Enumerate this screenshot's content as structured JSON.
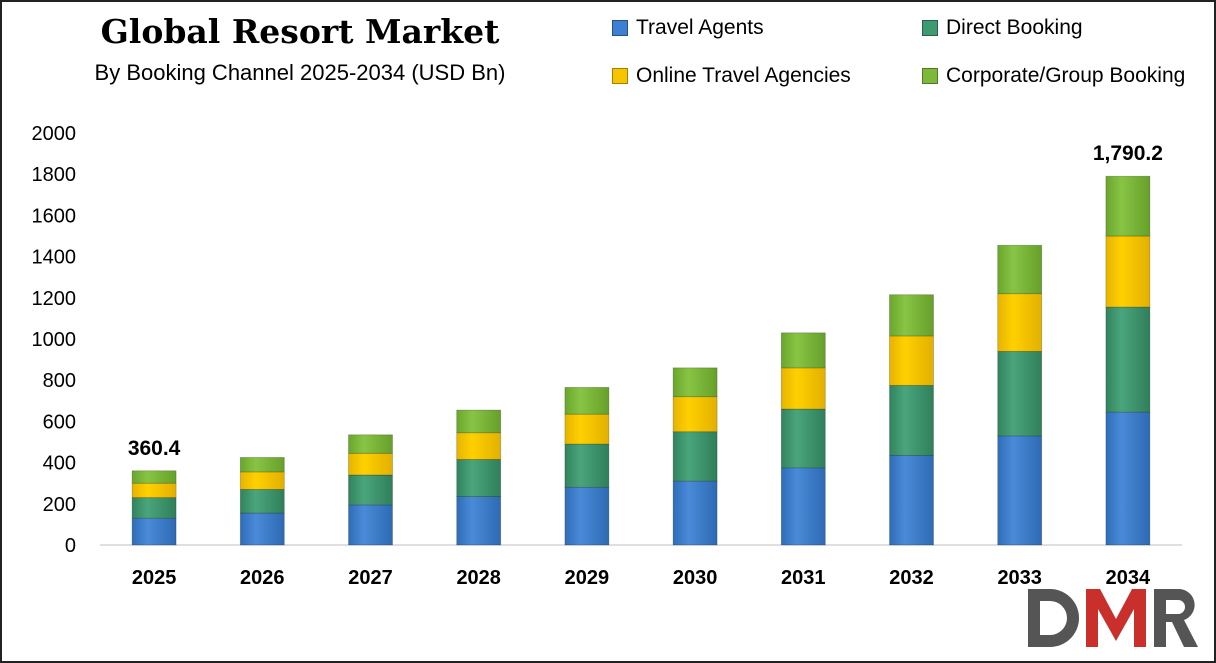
{
  "title": "Global Resort Market",
  "subtitle": "By Booking Channel 2025-2034 (USD Bn)",
  "logo_text": "DMR",
  "colors": {
    "travel_agents": "#3d7fd0",
    "direct_booking": "#3f9a72",
    "online_travel_agencies": "#f7c400",
    "corporate_group_booking": "#7db83a"
  },
  "chart_data": {
    "type": "bar",
    "stacked": true,
    "categories": [
      "2025",
      "2026",
      "2027",
      "2028",
      "2029",
      "2030",
      "2031",
      "2032",
      "2033",
      "2034"
    ],
    "series": [
      {
        "name": "Travel Agents",
        "color": "#3d7fd0",
        "values": [
          130,
          155,
          195,
          235,
          280,
          310,
          375,
          435,
          530,
          645
        ]
      },
      {
        "name": "Direct Booking",
        "color": "#3f9a72",
        "values": [
          100,
          115,
          145,
          180,
          210,
          240,
          285,
          340,
          410,
          510
        ]
      },
      {
        "name": "Online Travel Agencies",
        "color": "#f7c400",
        "values": [
          70,
          85,
          105,
          130,
          145,
          170,
          200,
          240,
          280,
          345
        ]
      },
      {
        "name": "Corporate/Group Booking",
        "color": "#7db83a",
        "values": [
          60.4,
          70,
          90,
          110,
          130,
          140,
          170,
          200,
          235,
          290.2
        ]
      }
    ],
    "yticks": [
      0,
      200,
      400,
      600,
      800,
      1000,
      1200,
      1400,
      1600,
      1800,
      2000
    ],
    "ylim": [
      0,
      2000
    ],
    "annotations": [
      {
        "category": "2025",
        "text": "360.4"
      },
      {
        "category": "2034",
        "text": "1,790.2"
      }
    ],
    "legend_position": "top-right",
    "grid": false
  }
}
